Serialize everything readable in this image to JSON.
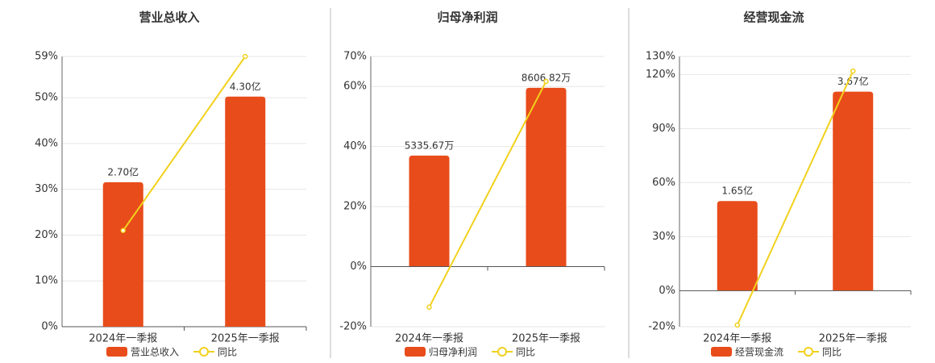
{
  "chart_data": [
    {
      "type": "bar",
      "title": "营业总收入",
      "categories": [
        "2024年一季报",
        "2025年一季报"
      ],
      "series": [
        {
          "name": "营业总收入",
          "type": "bar",
          "axis": "y2",
          "color": "#e84c1a",
          "values": [
            2.7,
            4.3
          ],
          "value_labels": [
            "2.70亿",
            "4.30亿"
          ]
        },
        {
          "name": "同比",
          "type": "line",
          "color": "#f2d11c",
          "values": [
            21,
            59
          ]
        }
      ],
      "ylim": [
        0,
        59
      ],
      "yticks": [
        {
          "value": 0,
          "label": "0%"
        },
        {
          "value": 10,
          "label": "10%"
        },
        {
          "value": 20,
          "label": "20%"
        },
        {
          "value": 30,
          "label": "30%"
        },
        {
          "value": 40,
          "label": "40%"
        },
        {
          "value": 50,
          "label": "50%"
        },
        {
          "value": 59,
          "label": "59%"
        }
      ],
      "y2lim": [
        0,
        5.05
      ],
      "grid": true
    },
    {
      "type": "bar",
      "title": "归母净利润",
      "categories": [
        "2024年一季报",
        "2025年一季报"
      ],
      "series": [
        {
          "name": "归母净利润",
          "type": "bar",
          "axis": "y2",
          "color": "#e84c1a",
          "values": [
            5335.67,
            8606.82
          ],
          "value_labels": [
            "5335.67万",
            "8606.82万"
          ]
        },
        {
          "name": "同比",
          "type": "line",
          "color": "#f2d11c",
          "values": [
            -13.5,
            61.7
          ]
        }
      ],
      "ylim": [
        -20,
        70
      ],
      "yticks": [
        {
          "value": -20,
          "label": "-20%"
        },
        {
          "value": 0,
          "label": "0%"
        },
        {
          "value": 20,
          "label": "20%"
        },
        {
          "value": 40,
          "label": "40%"
        },
        {
          "value": 60,
          "label": "60%"
        },
        {
          "value": 70,
          "label": "70%"
        }
      ],
      "y2lim": [
        -2920,
        10120
      ],
      "grid": true
    },
    {
      "type": "bar",
      "title": "经营现金流",
      "categories": [
        "2024年一季报",
        "2025年一季报"
      ],
      "series": [
        {
          "name": "经营现金流",
          "type": "bar",
          "axis": "y2",
          "color": "#e84c1a",
          "values": [
            1.65,
            3.67
          ],
          "value_labels": [
            "1.65亿",
            "3.67亿"
          ]
        },
        {
          "name": "同比",
          "type": "line",
          "color": "#f2d11c",
          "values": [
            -19.1,
            121.9
          ]
        }
      ],
      "ylim": [
        -20,
        130
      ],
      "yticks": [
        {
          "value": -20,
          "label": "-20%"
        },
        {
          "value": 0,
          "label": "0%"
        },
        {
          "value": 30,
          "label": "30%"
        },
        {
          "value": 60,
          "label": "60%"
        },
        {
          "value": 90,
          "label": "90%"
        },
        {
          "value": 120,
          "label": "120%"
        },
        {
          "value": 130,
          "label": "130%"
        }
      ],
      "y2lim": [
        -0.67,
        4.32
      ],
      "grid": true
    }
  ]
}
